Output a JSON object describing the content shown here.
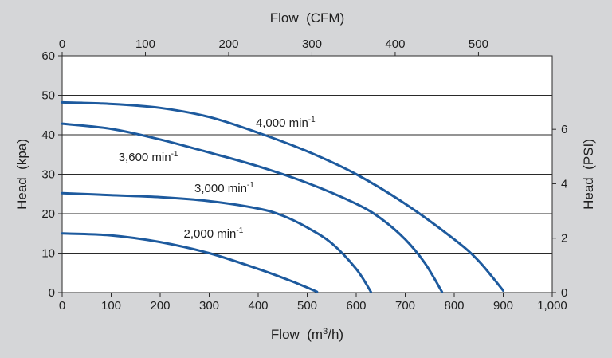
{
  "chart_data": {
    "type": "line",
    "x": {
      "label": "Flow  (m3/h)",
      "label_main": "Flow  (m",
      "label_sup": "3",
      "label_tail": "/h)",
      "range": [
        0,
        1000
      ],
      "ticks": [
        0,
        100,
        200,
        300,
        400,
        500,
        600,
        700,
        800,
        900,
        1000
      ],
      "tick_labels": [
        "0",
        "100",
        "200",
        "300",
        "400",
        "500",
        "600",
        "700",
        "800",
        "900",
        "1,000"
      ]
    },
    "x2": {
      "label": "Flow  (CFM)",
      "range": [
        0,
        588.6
      ],
      "ticks": [
        0,
        100,
        200,
        300,
        400,
        500
      ],
      "tick_labels": [
        "0",
        "100",
        "200",
        "300",
        "400",
        "500"
      ]
    },
    "y": {
      "label": "Head  (kpa)",
      "range": [
        0,
        60
      ],
      "ticks": [
        0,
        10,
        20,
        30,
        40,
        50,
        60
      ],
      "tick_labels": [
        "0",
        "10",
        "20",
        "30",
        "40",
        "50",
        "60"
      ]
    },
    "y2": {
      "label": "Head  (PSI)",
      "range": [
        0,
        8.7
      ],
      "ticks": [
        0,
        2,
        4,
        6
      ],
      "tick_labels": [
        "0",
        "2",
        "4",
        "6"
      ]
    },
    "grid_y": [
      10,
      20,
      30,
      40,
      50
    ],
    "series": [
      {
        "name": "4,000 min-1",
        "label_main": "4,000 min",
        "label_sup": "-1",
        "points": [
          [
            0,
            48.2
          ],
          [
            100,
            47.8
          ],
          [
            200,
            46.8
          ],
          [
            300,
            44.5
          ],
          [
            400,
            40.5
          ],
          [
            500,
            35.8
          ],
          [
            600,
            30.0
          ],
          [
            700,
            22.5
          ],
          [
            800,
            13.5
          ],
          [
            850,
            8.0
          ],
          [
            900,
            0.5
          ]
        ]
      },
      {
        "name": "3,600 min-1",
        "label_main": "3,600 min",
        "label_sup": "-1",
        "points": [
          [
            0,
            42.8
          ],
          [
            100,
            41.5
          ],
          [
            200,
            38.8
          ],
          [
            300,
            35.5
          ],
          [
            400,
            32.0
          ],
          [
            500,
            27.8
          ],
          [
            600,
            22.5
          ],
          [
            650,
            18.8
          ],
          [
            700,
            13.5
          ],
          [
            740,
            7.5
          ],
          [
            775,
            0.2
          ]
        ]
      },
      {
        "name": "3,000 min-1",
        "label_main": "3,000 min",
        "label_sup": "-1",
        "points": [
          [
            0,
            25.2
          ],
          [
            100,
            24.7
          ],
          [
            200,
            24.2
          ],
          [
            300,
            23.2
          ],
          [
            400,
            21.3
          ],
          [
            450,
            19.5
          ],
          [
            500,
            16.5
          ],
          [
            550,
            12.5
          ],
          [
            600,
            6.0
          ],
          [
            630,
            0.2
          ]
        ]
      },
      {
        "name": "2,000 min-1",
        "label_main": "2,000 min",
        "label_sup": "-1",
        "points": [
          [
            0,
            15.0
          ],
          [
            100,
            14.5
          ],
          [
            200,
            12.8
          ],
          [
            300,
            10.0
          ],
          [
            400,
            6.0
          ],
          [
            470,
            2.8
          ],
          [
            520,
            0.2
          ]
        ]
      }
    ],
    "annotations": [
      {
        "series": 0,
        "at": [
          395,
          42.0
        ]
      },
      {
        "series": 1,
        "at": [
          115,
          33.3
        ]
      },
      {
        "series": 2,
        "at": [
          270,
          25.5
        ]
      },
      {
        "series": 3,
        "at": [
          248,
          13.9
        ]
      }
    ],
    "line_color": "#1d5a9e",
    "background": "#d5d6d8",
    "plot_background": "#ffffff",
    "grid": true
  }
}
